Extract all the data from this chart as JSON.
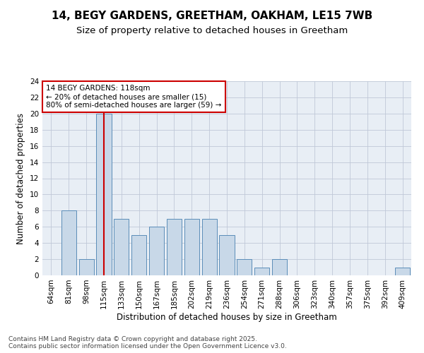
{
  "title_line1": "14, BEGY GARDENS, GREETHAM, OAKHAM, LE15 7WB",
  "title_line2": "Size of property relative to detached houses in Greetham",
  "xlabel": "Distribution of detached houses by size in Greetham",
  "ylabel": "Number of detached properties",
  "categories": [
    "64sqm",
    "81sqm",
    "98sqm",
    "115sqm",
    "133sqm",
    "150sqm",
    "167sqm",
    "185sqm",
    "202sqm",
    "219sqm",
    "236sqm",
    "254sqm",
    "271sqm",
    "288sqm",
    "306sqm",
    "323sqm",
    "340sqm",
    "357sqm",
    "375sqm",
    "392sqm",
    "409sqm"
  ],
  "values": [
    0,
    8,
    2,
    20,
    7,
    5,
    6,
    7,
    7,
    7,
    5,
    2,
    1,
    2,
    0,
    0,
    0,
    0,
    0,
    0,
    1
  ],
  "bar_color": "#c8d8e8",
  "bar_edge_color": "#5b8db8",
  "red_line_index": 3,
  "red_line_color": "#cc0000",
  "annotation_text": "14 BEGY GARDENS: 118sqm\n← 20% of detached houses are smaller (15)\n80% of semi-detached houses are larger (59) →",
  "annotation_box_color": "#ffffff",
  "annotation_box_edge_color": "#cc0000",
  "ylim": [
    0,
    24
  ],
  "yticks": [
    0,
    2,
    4,
    6,
    8,
    10,
    12,
    14,
    16,
    18,
    20,
    22,
    24
  ],
  "grid_color": "#c0c8d8",
  "background_color": "#e8eef5",
  "footer_text": "Contains HM Land Registry data © Crown copyright and database right 2025.\nContains public sector information licensed under the Open Government Licence v3.0.",
  "title_fontsize": 11,
  "subtitle_fontsize": 9.5,
  "axis_label_fontsize": 8.5,
  "tick_fontsize": 7.5,
  "annotation_fontsize": 7.5,
  "footer_fontsize": 6.5
}
